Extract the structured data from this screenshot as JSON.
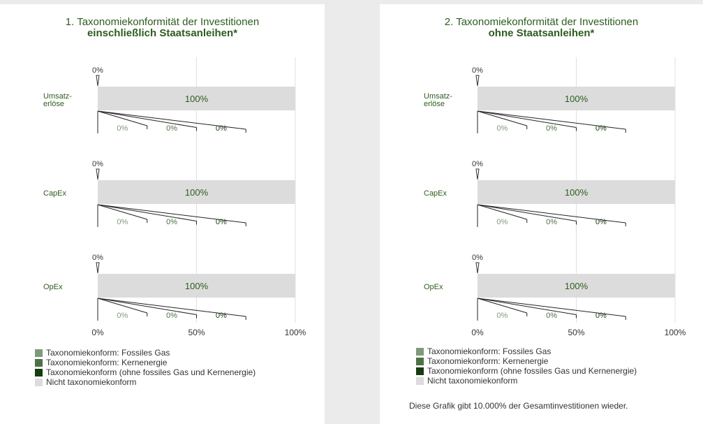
{
  "colors": {
    "fossil_gas": "#7f997a",
    "nuclear": "#4e7245",
    "other_aligned": "#163d0f",
    "not_aligned": "#dcdcdc",
    "title": "#2d5c1e",
    "label": "#2d5c1e"
  },
  "chart_data": [
    {
      "type": "bar",
      "orientation": "horizontal",
      "title": "1. Taxonomiekonformität der Investitionen",
      "subtitle": "einschließlich Staatsanleihen*",
      "categories": [
        "Umsatz-\nerlöse",
        "CapEx",
        "OpEx"
      ],
      "category_lines": [
        [
          "Umsatz-",
          "erlöse"
        ],
        [
          "CapEx"
        ],
        [
          "OpEx"
        ]
      ],
      "series": [
        {
          "name": "Taxonomiekonform: Fossiles Gas",
          "values": [
            0,
            0,
            0
          ]
        },
        {
          "name": "Taxonomiekonform: Kernenergie",
          "values": [
            0,
            0,
            0
          ]
        },
        {
          "name": "Taxonomiekonform (ohne fossiles Gas und Kernenergie)",
          "values": [
            0,
            0,
            0
          ]
        },
        {
          "name": "Nicht taxonomiekonform",
          "values": [
            100,
            100,
            100
          ]
        }
      ],
      "aligned_label": "0%",
      "bar_label": "100%",
      "breakdown_labels": [
        "0%",
        "0%",
        "0%"
      ],
      "xlim": [
        0,
        100
      ],
      "x_ticks": [
        0,
        50,
        100
      ],
      "x_tick_labels": [
        "0%",
        "50%",
        "100%"
      ],
      "grid": true,
      "legend_position": "bottom"
    },
    {
      "type": "bar",
      "orientation": "horizontal",
      "title": "2. Taxonomiekonformität der Investitionen",
      "subtitle": "ohne Staatsanleihen*",
      "categories": [
        "Umsatz-\nerlöse",
        "CapEx",
        "OpEx"
      ],
      "category_lines": [
        [
          "Umsatz-",
          "erlöse"
        ],
        [
          "CapEx"
        ],
        [
          "OpEx"
        ]
      ],
      "series": [
        {
          "name": "Taxonomiekonform: Fossiles Gas",
          "values": [
            0,
            0,
            0
          ]
        },
        {
          "name": "Taxonomiekonform: Kernenergie",
          "values": [
            0,
            0,
            0
          ]
        },
        {
          "name": "Taxonomiekonform (ohne fossiles Gas und Kernenergie)",
          "values": [
            0,
            0,
            0
          ]
        },
        {
          "name": "Nicht taxonomiekonform",
          "values": [
            100,
            100,
            100
          ]
        }
      ],
      "aligned_label": "0%",
      "bar_label": "100%",
      "breakdown_labels": [
        "0%",
        "0%",
        "0%"
      ],
      "xlim": [
        0,
        100
      ],
      "x_ticks": [
        0,
        50,
        100
      ],
      "x_tick_labels": [
        "0%",
        "50%",
        "100%"
      ],
      "grid": true,
      "legend_position": "bottom",
      "footnote": "Diese Grafik gibt 10.000% der Gesamtinvestitionen wieder."
    }
  ]
}
